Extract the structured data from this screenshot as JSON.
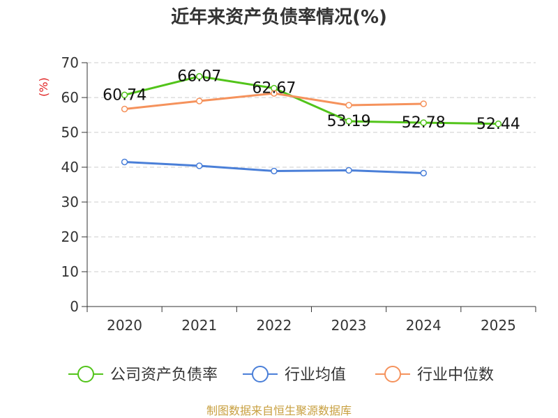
{
  "chart_data": {
    "type": "line",
    "title": "近年来资产负债率情况(%)",
    "ylabel": "(%)",
    "xlabel": "",
    "categories": [
      "2020",
      "2021",
      "2022",
      "2023",
      "2024",
      "2025"
    ],
    "ylim": [
      0,
      70
    ],
    "yticks": [
      0,
      10,
      20,
      30,
      40,
      50,
      60,
      70
    ],
    "grid": true,
    "legend_position": "bottom",
    "series": [
      {
        "name": "公司资产负债率",
        "color": "#52c41a",
        "values": [
          60.74,
          66.07,
          62.67,
          53.19,
          52.78,
          52.44
        ],
        "labels": [
          "60.74",
          "66.07",
          "62.67",
          "53.19",
          "52.78",
          "52.44"
        ]
      },
      {
        "name": "行业均值",
        "color": "#4a7fd8",
        "values": [
          41.5,
          40.4,
          38.9,
          39.1,
          38.3,
          null
        ]
      },
      {
        "name": "行业中位数",
        "color": "#f5925c",
        "values": [
          56.7,
          59.0,
          61.2,
          57.8,
          58.2,
          null
        ]
      }
    ]
  },
  "source": "制图数据来自恒生聚源数据库"
}
